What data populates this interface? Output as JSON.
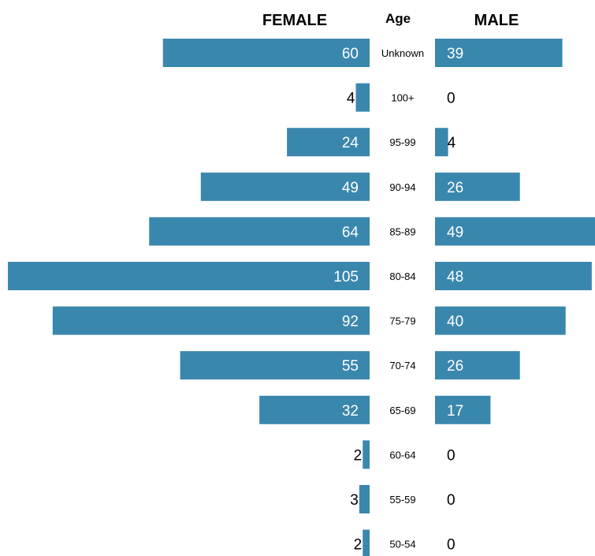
{
  "chart_data": {
    "type": "bar",
    "headers": {
      "left": "FEMALE",
      "center": "Age",
      "right": "MALE"
    },
    "categories": [
      "Unknown",
      "100+",
      "95-99",
      "90-94",
      "85-89",
      "80-84",
      "75-79",
      "70-74",
      "65-69",
      "60-64",
      "55-59",
      "50-54"
    ],
    "series": [
      {
        "name": "FEMALE",
        "values": [
          60,
          4,
          24,
          49,
          64,
          105,
          92,
          55,
          32,
          2,
          3,
          2
        ]
      },
      {
        "name": "MALE",
        "values": [
          39,
          0,
          4,
          26,
          49,
          48,
          40,
          26,
          17,
          0,
          0,
          0
        ]
      }
    ],
    "bar_color": "#3a87ae",
    "label_inside_color": "#ffffff",
    "label_outside_color": "#000000"
  }
}
